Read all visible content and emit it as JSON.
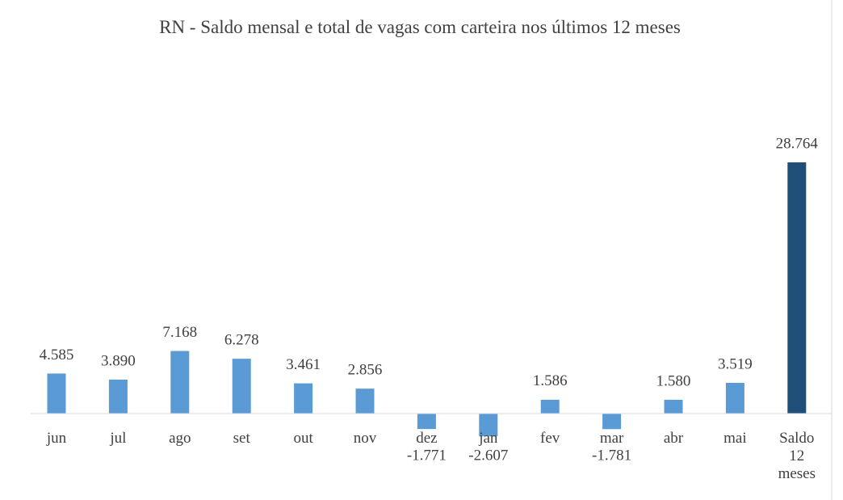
{
  "chart_data": {
    "type": "bar",
    "title": "RN - Saldo mensal e total de vagas com carteira nos últimos 12 meses",
    "categories": [
      "jun",
      "jul",
      "ago",
      "set",
      "out",
      "nov",
      "dez",
      "jan",
      "fev",
      "mar",
      "abr",
      "mai",
      "Saldo 12 meses"
    ],
    "values": [
      4585,
      3890,
      7168,
      6278,
      3461,
      2856,
      -1771,
      -2607,
      1586,
      -1781,
      1580,
      3519,
      28764
    ],
    "value_labels": [
      "4.585",
      "3.890",
      "7.168",
      "6.278",
      "3.461",
      "2.856",
      "-1.771",
      "-2.607",
      "1.586",
      "-1.781",
      "1.580",
      "3.519",
      "28.764"
    ],
    "colors": [
      "#5b9bd5",
      "#5b9bd5",
      "#5b9bd5",
      "#5b9bd5",
      "#5b9bd5",
      "#5b9bd5",
      "#5b9bd5",
      "#5b9bd5",
      "#5b9bd5",
      "#5b9bd5",
      "#5b9bd5",
      "#5b9bd5",
      "#1f4e79"
    ],
    "negative_label_color": "#ff0000"
  }
}
